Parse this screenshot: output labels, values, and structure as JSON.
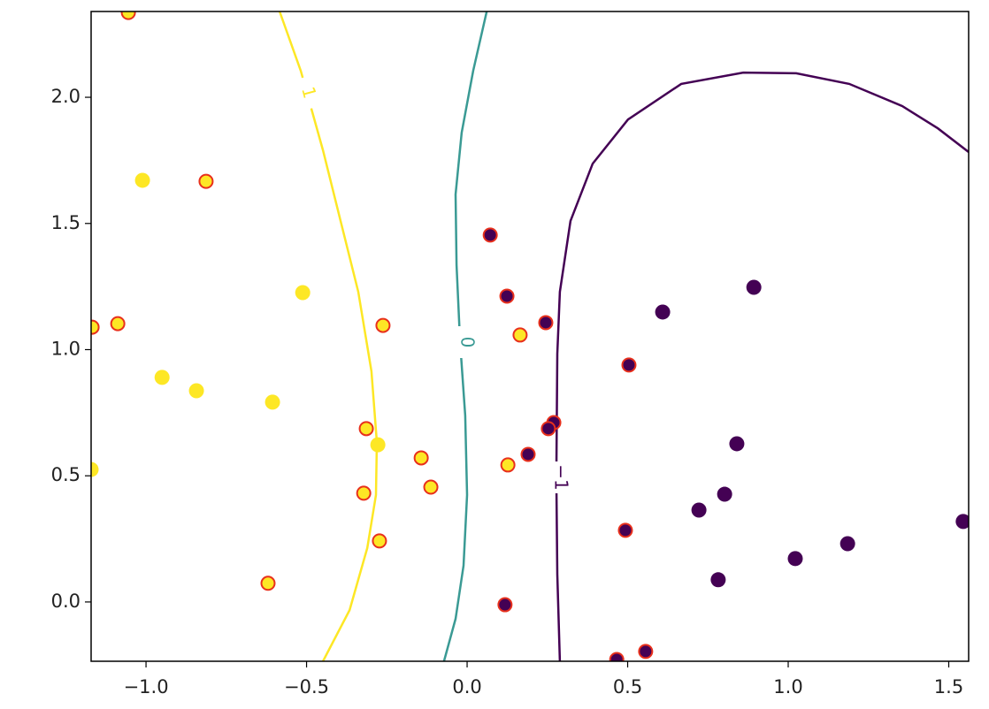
{
  "chart_data": {
    "type": "scatter",
    "xlim": [
      -1.171,
      1.562
    ],
    "ylim": [
      -0.235,
      2.34
    ],
    "xticks": [
      {
        "value": -1,
        "label": "−1.0"
      },
      {
        "value": -0.5,
        "label": "−0.5"
      },
      {
        "value": 0,
        "label": "0.0"
      },
      0.5,
      {
        "value": 1,
        "label": "1.0"
      },
      1.5
    ],
    "yticks": [
      {
        "value": 0,
        "label": "0.0"
      },
      0.5,
      {
        "value": 1,
        "label": "1.0"
      },
      1.5,
      {
        "value": 2,
        "label": "2.0"
      }
    ],
    "contours": [
      {
        "label": "1",
        "color": "#fde725",
        "x": [
          -0.584,
          -0.518,
          -0.449,
          -0.394,
          -0.339,
          -0.298,
          -0.281,
          -0.284,
          -0.311,
          -0.366,
          -0.449
        ],
        "y": [
          2.34,
          2.105,
          1.79,
          1.51,
          1.229,
          0.914,
          0.634,
          0.424,
          0.214,
          -0.032,
          -0.235
        ]
      },
      {
        "label": "0",
        "color": "#3a9a94",
        "x": [
          0.061,
          0.019,
          -0.017,
          -0.036,
          -0.033,
          -0.022,
          -0.006,
          0.0,
          -0.011,
          -0.036,
          -0.072
        ],
        "y": [
          2.34,
          2.105,
          1.86,
          1.615,
          1.335,
          1.03,
          0.739,
          0.424,
          0.144,
          -0.067,
          -0.235
        ]
      },
      {
        "label": "−1",
        "color": "#440154",
        "x": [
          0.289,
          0.281,
          0.278,
          0.281,
          0.289,
          0.322,
          0.391,
          0.501,
          0.667,
          0.86,
          1.025,
          1.19,
          1.355,
          1.466,
          1.562
        ],
        "y": [
          -0.235,
          0.109,
          0.494,
          0.984,
          1.229,
          1.51,
          1.737,
          1.912,
          2.053,
          2.098,
          2.095,
          2.053,
          1.965,
          1.877,
          1.783
        ]
      }
    ],
    "series": [
      {
        "color": "#fde725",
        "x": [
          -1.011,
          -0.512,
          -0.95,
          -0.843,
          -0.606,
          -0.278,
          -1.171
        ],
        "y": [
          1.671,
          1.226,
          0.89,
          0.837,
          0.792,
          0.623,
          0.525
        ]
      },
      {
        "color": "#fde725",
        "edgecolor": "#e8301c",
        "x": [
          -1.055,
          -0.813,
          -1.168,
          -1.088,
          -0.262,
          0.165,
          -0.314,
          -0.143,
          0.127,
          -0.113,
          -0.322,
          -0.273,
          -0.62
        ],
        "y": [
          2.336,
          1.667,
          1.089,
          1.103,
          1.096,
          1.058,
          0.687,
          0.571,
          0.543,
          0.455,
          0.431,
          0.242,
          0.074
        ]
      },
      {
        "color": "#440154",
        "x": [
          0.609,
          0.893,
          0.84,
          0.802,
          0.722,
          1.545,
          1.185,
          1.022,
          0.782
        ],
        "y": [
          1.149,
          1.247,
          0.627,
          0.427,
          0.364,
          0.319,
          0.231,
          0.172,
          0.088
        ]
      },
      {
        "color": "#440154",
        "edgecolor": "#e8301c",
        "x": [
          0.072,
          0.124,
          0.245,
          0.504,
          0.27,
          0.253,
          0.19,
          0.493,
          0.118,
          0.466,
          0.556
        ],
        "y": [
          1.454,
          1.212,
          1.107,
          0.939,
          0.711,
          0.687,
          0.585,
          0.284,
          -0.011,
          -0.228,
          -0.196
        ]
      }
    ]
  }
}
